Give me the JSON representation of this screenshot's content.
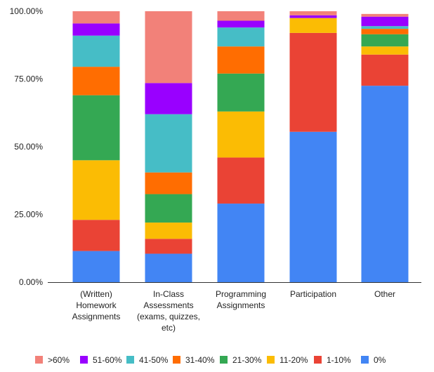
{
  "chart_data": {
    "type": "bar",
    "stacked": true,
    "categories": [
      [
        "(Written)",
        "Homework",
        "Assignments"
      ],
      [
        "In-Class",
        "Assessments",
        "(exams, quizzes,",
        "etc)"
      ],
      [
        "Programming",
        "Assignments"
      ],
      [
        "Participation"
      ],
      [
        "Other"
      ]
    ],
    "y_ticks": [
      "0.00%",
      "25.00%",
      "50.00%",
      "75.00%",
      "100.00%"
    ],
    "ylim": [
      0,
      100
    ],
    "grid": false,
    "legend_position": "bottom",
    "series": [
      {
        "name": "0%",
        "color": "#4285f4",
        "values": [
          11.5,
          10.5,
          29,
          55.5,
          72.5
        ]
      },
      {
        "name": "1-10%",
        "color": "#ea4335",
        "values": [
          11.5,
          5.5,
          17,
          36.5,
          11.5
        ]
      },
      {
        "name": "11-20%",
        "color": "#fbbc04",
        "values": [
          22,
          6,
          17,
          5.5,
          3
        ]
      },
      {
        "name": "21-30%",
        "color": "#34a853",
        "values": [
          24,
          10.5,
          14,
          0,
          4.5
        ]
      },
      {
        "name": "31-40%",
        "color": "#ff6d01",
        "values": [
          10.5,
          8,
          10,
          0,
          2
        ]
      },
      {
        "name": "41-50%",
        "color": "#46bdc6",
        "values": [
          11.5,
          21.5,
          7,
          0,
          1
        ]
      },
      {
        "name": "51-60%",
        "color": "#9900ff",
        "values": [
          4.5,
          11.5,
          2.5,
          1,
          3.5
        ]
      },
      {
        "name": ">60%",
        "color": "#f28179",
        "values": [
          4.5,
          26.5,
          3.5,
          1.5,
          1
        ]
      }
    ]
  }
}
